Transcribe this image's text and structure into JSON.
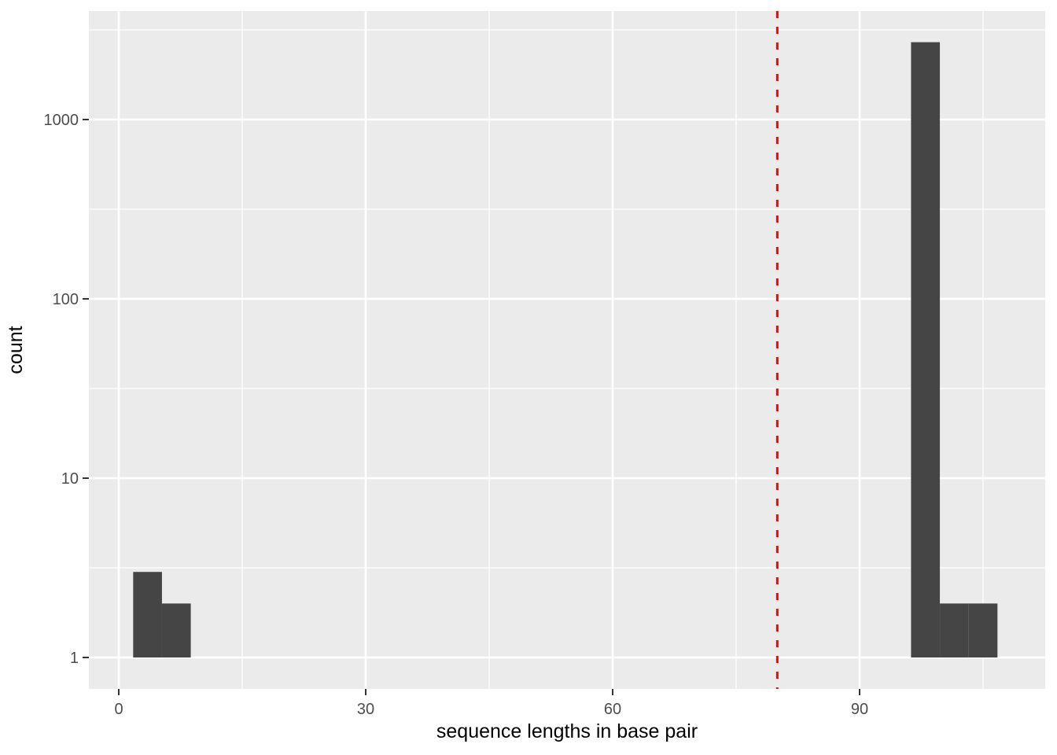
{
  "figure": {
    "background": "#FFFFFF",
    "panel_background": "#EBEBEB",
    "grid_color": "#FFFFFF",
    "bar_color": "#454545",
    "tick_mark_color": "#333333",
    "tick_label_color": "#4D4D4D",
    "axis_title_color": "#000000"
  },
  "chart_data": {
    "type": "bar",
    "subtype": "histogram",
    "title": "",
    "xlabel": "sequence lengths in base pair",
    "ylabel": "count",
    "y_scale": "log10",
    "grid": true,
    "legend_position": "none",
    "x_ticks": [
      0,
      30,
      60,
      90
    ],
    "x_tick_labels": [
      "0",
      "30",
      "60",
      "90"
    ],
    "x_minor_ticks": [
      15,
      45,
      75,
      105
    ],
    "y_ticks": [
      1,
      10,
      100,
      1000
    ],
    "y_tick_labels": [
      "1",
      "10",
      "100",
      "1000"
    ],
    "y_minor_ticks": [
      3.1623,
      31.623,
      316.23,
      3162.3
    ],
    "x_range": [
      -3.6,
      112.6
    ],
    "y_range": [
      0.67,
      4030
    ],
    "bins": [
      {
        "x_start": 1.75,
        "x_end": 5.25,
        "count": 3
      },
      {
        "x_start": 5.25,
        "x_end": 8.75,
        "count": 2
      },
      {
        "x_start": 96.25,
        "x_end": 99.75,
        "count": 2700
      },
      {
        "x_start": 99.75,
        "x_end": 103.25,
        "count": 2
      },
      {
        "x_start": 103.25,
        "x_end": 106.75,
        "count": 2
      }
    ],
    "vline": {
      "x": 80,
      "style": "dashed",
      "color": "#FF0000",
      "width": 3
    }
  }
}
